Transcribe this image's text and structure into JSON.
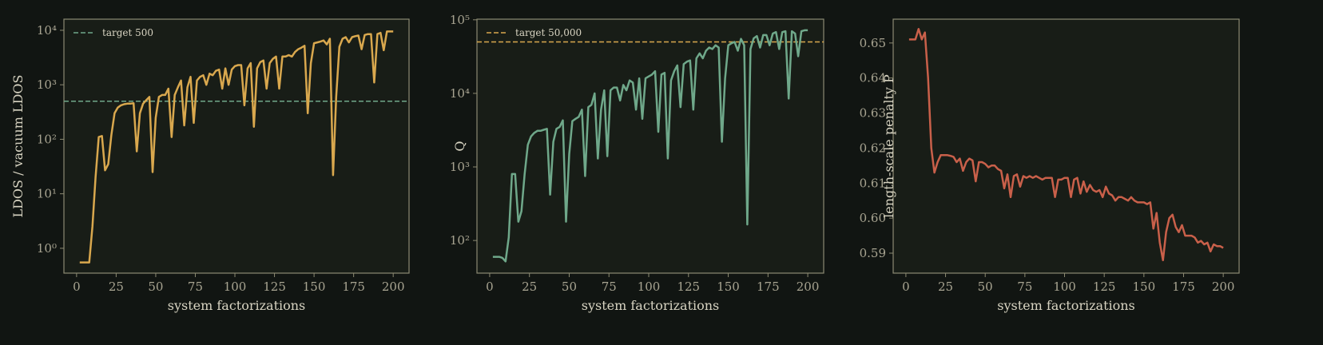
{
  "chart_data": [
    {
      "type": "line",
      "xlabel": "system factorizations",
      "ylabel": "LDOS / vacuum LDOS",
      "log_y": true,
      "xlim": [
        -8,
        210
      ],
      "ylim": [
        0.35,
        16000
      ],
      "xticks": [
        0,
        25,
        50,
        75,
        100,
        125,
        150,
        175,
        200
      ],
      "yticks": [
        {
          "value": 1,
          "label": "10⁰"
        },
        {
          "value": 10,
          "label": "10¹"
        },
        {
          "value": 100,
          "label": "10²"
        },
        {
          "value": 1000,
          "label": "10³"
        },
        {
          "value": 10000,
          "label": "10⁴"
        }
      ],
      "legend": "upper left",
      "x": [
        2,
        4,
        6,
        8,
        10,
        12,
        14,
        16,
        18,
        20,
        22,
        24,
        26,
        28,
        30,
        32,
        34,
        36,
        38,
        40,
        42,
        44,
        46,
        48,
        50,
        52,
        54,
        56,
        58,
        60,
        62,
        64,
        66,
        68,
        70,
        72,
        74,
        76,
        78,
        80,
        82,
        84,
        86,
        88,
        90,
        92,
        94,
        96,
        98,
        100,
        102,
        104,
        106,
        108,
        110,
        112,
        114,
        116,
        118,
        120,
        122,
        124,
        126,
        128,
        130,
        132,
        134,
        136,
        138,
        140,
        142,
        144,
        146,
        148,
        150,
        152,
        154,
        156,
        158,
        160,
        162,
        164,
        166,
        168,
        170,
        172,
        174,
        176,
        178,
        180,
        182,
        184,
        186,
        188,
        190,
        192,
        194,
        196,
        198,
        200
      ],
      "series": [
        {
          "color": "#d9a84e",
          "values": [
            0.55,
            0.55,
            0.55,
            0.55,
            2.5,
            20,
            110,
            115,
            27,
            35,
            120,
            300,
            380,
            420,
            440,
            450,
            450,
            460,
            60,
            300,
            450,
            520,
            600,
            25,
            250,
            600,
            650,
            650,
            850,
            110,
            650,
            900,
            1200,
            180,
            900,
            1400,
            200,
            1200,
            1400,
            1500,
            1000,
            1600,
            1500,
            1800,
            1900,
            850,
            2000,
            1000,
            1900,
            2200,
            2300,
            2300,
            420,
            2000,
            2500,
            170,
            2000,
            2600,
            2800,
            850,
            2500,
            3000,
            3300,
            850,
            3300,
            3300,
            3500,
            3300,
            4000,
            4500,
            4800,
            5200,
            300,
            2500,
            5800,
            6000,
            6200,
            6500,
            5500,
            7000,
            22,
            600,
            5000,
            7000,
            7500,
            6000,
            7500,
            7800,
            8000,
            4500,
            8200,
            8500,
            8500,
            1100,
            8500,
            9000,
            4300,
            9500,
            9500,
            9500
          ]
        }
      ],
      "hlines": [
        {
          "value": 500,
          "label": "target 500",
          "color": "#6fa88a"
        }
      ]
    },
    {
      "type": "line",
      "xlabel": "system factorizations",
      "ylabel": "Q",
      "log_y": true,
      "xlim": [
        -8,
        210
      ],
      "ylim": [
        36,
        102000
      ],
      "xticks": [
        0,
        25,
        50,
        75,
        100,
        125,
        150,
        175,
        200
      ],
      "yticks": [
        {
          "value": 100,
          "label": "10²"
        },
        {
          "value": 1000,
          "label": "10³"
        },
        {
          "value": 10000,
          "label": "10⁴"
        },
        {
          "value": 100000,
          "label": "10⁵"
        }
      ],
      "legend": "upper left",
      "x": [
        2,
        4,
        6,
        8,
        10,
        12,
        14,
        16,
        18,
        20,
        22,
        24,
        26,
        28,
        30,
        32,
        34,
        36,
        38,
        40,
        42,
        44,
        46,
        48,
        50,
        52,
        54,
        56,
        58,
        60,
        62,
        64,
        66,
        68,
        70,
        72,
        74,
        76,
        78,
        80,
        82,
        84,
        86,
        88,
        90,
        92,
        94,
        96,
        98,
        100,
        102,
        104,
        106,
        108,
        110,
        112,
        114,
        116,
        118,
        120,
        122,
        124,
        126,
        128,
        130,
        132,
        134,
        136,
        138,
        140,
        142,
        144,
        146,
        148,
        150,
        152,
        154,
        156,
        158,
        160,
        162,
        164,
        166,
        168,
        170,
        172,
        174,
        176,
        178,
        180,
        182,
        184,
        186,
        188,
        190,
        192,
        194,
        196,
        198,
        200
      ],
      "series": [
        {
          "color": "#6fa88a",
          "values": [
            60,
            60,
            60,
            58,
            52,
            110,
            800,
            800,
            180,
            250,
            800,
            2000,
            2600,
            2900,
            3100,
            3100,
            3200,
            3300,
            420,
            2200,
            3300,
            3500,
            4300,
            180,
            1500,
            4200,
            4500,
            4800,
            6000,
            750,
            6500,
            7000,
            10000,
            1300,
            6000,
            11000,
            1400,
            11000,
            12000,
            12000,
            8000,
            13000,
            11000,
            15000,
            14000,
            6000,
            16000,
            4500,
            16000,
            17000,
            18000,
            20000,
            3000,
            18000,
            19000,
            1300,
            15000,
            20000,
            24000,
            6500,
            25000,
            27000,
            28000,
            6000,
            30000,
            35000,
            30000,
            38000,
            42000,
            40000,
            45000,
            42000,
            2200,
            16000,
            45000,
            48000,
            50000,
            38000,
            55000,
            45000,
            165,
            40000,
            56000,
            60000,
            42000,
            62000,
            62000,
            45000,
            65000,
            68000,
            40000,
            68000,
            70000,
            8500,
            70000,
            65000,
            32000,
            70000,
            72000,
            72000
          ]
        }
      ],
      "hlines": [
        {
          "value": 50000,
          "label": "target 50,000",
          "color": "#d9a84e"
        }
      ]
    },
    {
      "type": "line",
      "xlabel": "system factorizations",
      "ylabel": "length-scale penalty P",
      "log_y": false,
      "xlim": [
        -8,
        210
      ],
      "ylim": [
        0.5843,
        0.6568
      ],
      "xticks": [
        0,
        25,
        50,
        75,
        100,
        125,
        150,
        175,
        200
      ],
      "yticks": [
        0.59,
        {
          "value": 0.6,
          "label": "0.60"
        },
        0.61,
        0.62,
        0.63,
        0.64,
        0.65
      ],
      "x": [
        2,
        4,
        6,
        8,
        10,
        12,
        14,
        16,
        18,
        20,
        22,
        24,
        26,
        28,
        30,
        32,
        34,
        36,
        38,
        40,
        42,
        44,
        46,
        48,
        50,
        52,
        54,
        56,
        58,
        60,
        62,
        64,
        66,
        68,
        70,
        72,
        74,
        76,
        78,
        80,
        82,
        84,
        86,
        88,
        90,
        92,
        94,
        96,
        98,
        100,
        102,
        104,
        106,
        108,
        110,
        112,
        114,
        116,
        118,
        120,
        122,
        124,
        126,
        128,
        130,
        132,
        134,
        136,
        138,
        140,
        142,
        144,
        146,
        148,
        150,
        152,
        154,
        156,
        158,
        160,
        162,
        164,
        166,
        168,
        170,
        172,
        174,
        176,
        178,
        180,
        182,
        184,
        186,
        188,
        190,
        192,
        194,
        196,
        198,
        200
      ],
      "series": [
        {
          "color": "#c9604a",
          "values": [
            0.651,
            0.651,
            0.651,
            0.654,
            0.651,
            0.653,
            0.64,
            0.62,
            0.613,
            0.616,
            0.618,
            0.618,
            0.618,
            0.6178,
            0.6175,
            0.616,
            0.617,
            0.6135,
            0.616,
            0.617,
            0.6165,
            0.6105,
            0.616,
            0.616,
            0.6155,
            0.6145,
            0.615,
            0.615,
            0.614,
            0.6135,
            0.6085,
            0.6125,
            0.606,
            0.612,
            0.6125,
            0.609,
            0.612,
            0.6115,
            0.612,
            0.6115,
            0.612,
            0.6115,
            0.611,
            0.6115,
            0.6115,
            0.6115,
            0.606,
            0.611,
            0.611,
            0.6115,
            0.6115,
            0.606,
            0.611,
            0.6115,
            0.607,
            0.6105,
            0.6075,
            0.6095,
            0.608,
            0.6075,
            0.608,
            0.606,
            0.609,
            0.607,
            0.6065,
            0.605,
            0.606,
            0.606,
            0.6055,
            0.605,
            0.606,
            0.605,
            0.6045,
            0.6045,
            0.6045,
            0.604,
            0.6045,
            0.597,
            0.6015,
            0.593,
            0.588,
            0.596,
            0.6,
            0.601,
            0.5975,
            0.596,
            0.598,
            0.595,
            0.595,
            0.595,
            0.5945,
            0.593,
            0.5935,
            0.5925,
            0.593,
            0.5905,
            0.5925,
            0.592,
            0.592,
            0.5915
          ]
        }
      ]
    }
  ]
}
